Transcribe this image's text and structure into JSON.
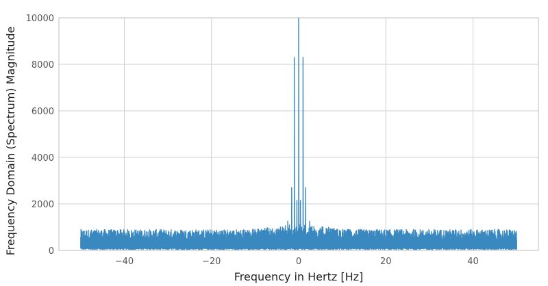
{
  "chart_data": {
    "type": "line",
    "title": "",
    "xlabel": "Frequency in Hertz [Hz]",
    "ylabel": "Frequency Domain (Spectrum) Magnitude",
    "xlim": [
      -55,
      55
    ],
    "ylim": [
      0,
      10000
    ],
    "x_ticks": [
      -40,
      -20,
      0,
      20,
      40
    ],
    "y_ticks": [
      0,
      2000,
      4000,
      6000,
      8000,
      10000
    ],
    "x_tick_labels": [
      "−40",
      "−20",
      "0",
      "20",
      "40"
    ],
    "y_tick_labels": [
      "0",
      "2000",
      "4000",
      "6000",
      "8000",
      "10000"
    ],
    "grid": true,
    "legend": "none",
    "series_color": "#3a88c0",
    "series": [
      {
        "x_range": [
          -50,
          50
        ],
        "baseline_floor": 400,
        "baseline_ceiling": 900,
        "peaks": [
          {
            "x": 0,
            "y": 10000
          },
          {
            "x": -1,
            "y": 8300
          },
          {
            "x": 1,
            "y": 8300
          },
          {
            "x": -1.6,
            "y": 2700
          },
          {
            "x": 1.6,
            "y": 2700
          },
          {
            "x": -0.4,
            "y": 2150
          },
          {
            "x": 0.4,
            "y": 2150
          },
          {
            "x": -2.5,
            "y": 1250
          },
          {
            "x": 2.5,
            "y": 1250
          }
        ]
      }
    ]
  }
}
